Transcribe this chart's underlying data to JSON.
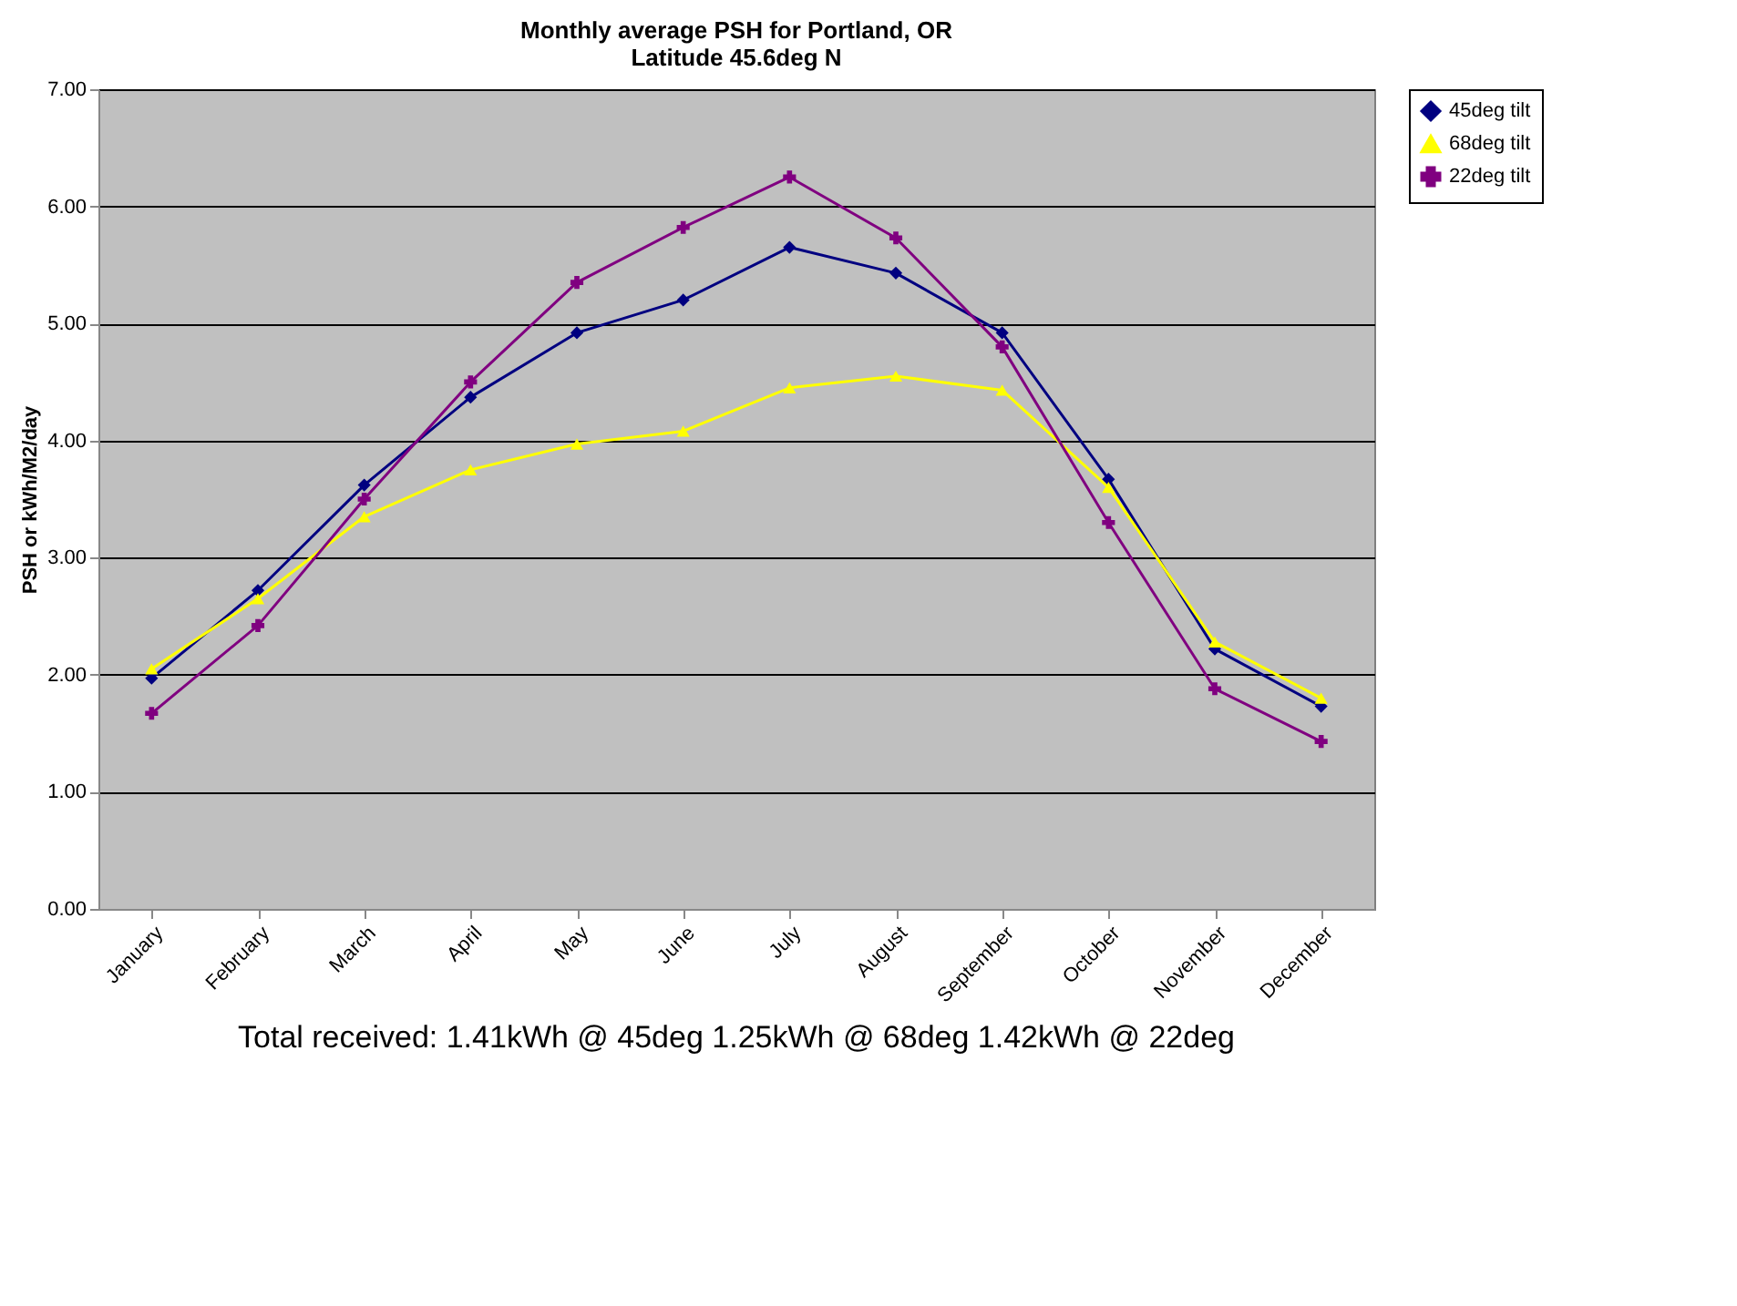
{
  "chart_data": {
    "type": "line",
    "title": [
      "Monthly average PSH for Portland, OR",
      "Latitude 45.6deg N"
    ],
    "ylabel": "PSH or kWh/M2/day",
    "categories": [
      "January",
      "February",
      "March",
      "April",
      "May",
      "June",
      "July",
      "August",
      "September",
      "October",
      "November",
      "December"
    ],
    "series": [
      {
        "name": "45deg tilt",
        "color": "#000080",
        "marker": "diamond",
        "values": [
          1.97,
          2.72,
          3.62,
          4.37,
          4.92,
          5.2,
          5.65,
          5.43,
          4.92,
          3.67,
          2.22,
          1.73
        ]
      },
      {
        "name": "68deg tilt",
        "color": "#ffff00",
        "marker": "triangle",
        "values": [
          2.05,
          2.65,
          3.35,
          3.75,
          3.97,
          4.08,
          4.45,
          4.55,
          4.43,
          3.6,
          2.28,
          1.8
        ]
      },
      {
        "name": "22deg tilt",
        "color": "#800080",
        "marker": "cross",
        "values": [
          1.67,
          2.42,
          3.5,
          4.5,
          5.35,
          5.82,
          6.25,
          5.73,
          4.8,
          3.3,
          1.88,
          1.43
        ]
      }
    ],
    "ylim": [
      0,
      7
    ],
    "yticks": [
      {
        "value": 0,
        "label": "0.00"
      },
      {
        "value": 1,
        "label": "1.00"
      },
      {
        "value": 2,
        "label": "2.00"
      },
      {
        "value": 3,
        "label": "3.00"
      },
      {
        "value": 4,
        "label": "4.00"
      },
      {
        "value": 5,
        "label": "5.00"
      },
      {
        "value": 6,
        "label": "6.00"
      },
      {
        "value": 7,
        "label": "7.00"
      }
    ],
    "grid": "y",
    "legend": "right",
    "annotations": [
      "Total  received:  1.41kWh @ 45deg      1.25kWh @ 68deg   1.42kWh @ 22deg"
    ]
  }
}
